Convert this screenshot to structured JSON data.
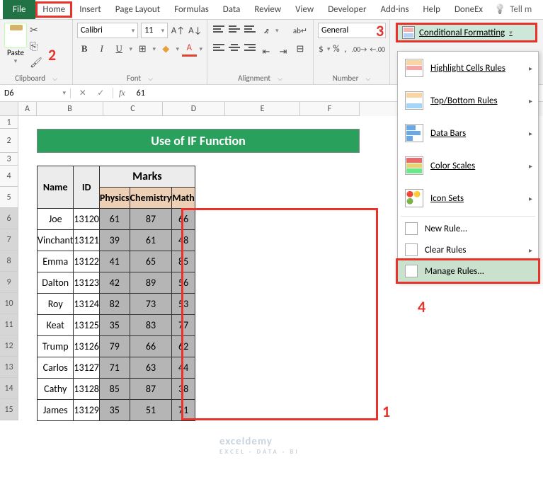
{
  "ribbon_tabs": {
    "file": "File",
    "home": "Home",
    "insert": "Insert",
    "page_layout": "Page Layout",
    "formulas": "Formulas",
    "data": "Data",
    "review": "Review",
    "view": "View",
    "developer": "Developer",
    "add_ins": "Add-ins",
    "help": "Help",
    "donex": "DoneEx",
    "tell_me": "Tell m"
  },
  "ribbon_groups": {
    "clipboard": {
      "label": "Clipboard",
      "paste": "Paste"
    },
    "font": {
      "label": "Font",
      "name": "Calibri",
      "size": "11"
    },
    "alignment": {
      "label": "Alignment"
    },
    "number": {
      "label": "Number",
      "format": "General"
    },
    "styles": {
      "cf_button": "Conditional Formatting"
    }
  },
  "name_box": "D6",
  "formula_value": "61",
  "columns": [
    "A",
    "B",
    "C",
    "D",
    "E",
    "F"
  ],
  "row_numbers": [
    "1",
    "2",
    "3",
    "4",
    "5",
    "6",
    "7",
    "8",
    "9",
    "10",
    "11",
    "12",
    "13",
    "14",
    "15"
  ],
  "title_cell": "Use of IF Function",
  "table": {
    "header_name": "Name",
    "header_id": "ID",
    "header_marks": "Marks",
    "sub_physics": "Physics",
    "sub_chemistry": "Chemistry",
    "sub_math": "Math",
    "rows": [
      {
        "name": "Joe",
        "id": "13120",
        "p": "61",
        "c": "87",
        "m": "66"
      },
      {
        "name": "Vinchant",
        "id": "13121",
        "p": "39",
        "c": "61",
        "m": "48"
      },
      {
        "name": "Emma",
        "id": "13122",
        "p": "41",
        "c": "65",
        "m": "85"
      },
      {
        "name": "Dalton",
        "id": "13123",
        "p": "42",
        "c": "89",
        "m": "56"
      },
      {
        "name": "Roy",
        "id": "13124",
        "p": "82",
        "c": "73",
        "m": "53"
      },
      {
        "name": "Keat",
        "id": "13125",
        "p": "35",
        "c": "83",
        "m": "77"
      },
      {
        "name": "Trump",
        "id": "13126",
        "p": "79",
        "c": "66",
        "m": "62"
      },
      {
        "name": "Carlos",
        "id": "13127",
        "p": "71",
        "c": "63",
        "m": "44"
      },
      {
        "name": "Cathy",
        "id": "13128",
        "p": "85",
        "c": "87",
        "m": "38"
      },
      {
        "name": "James",
        "id": "13129",
        "p": "35",
        "c": "51",
        "m": "71"
      }
    ]
  },
  "cf_dropdown": {
    "highlight": "Highlight Cells Rules",
    "topbottom": "Top/Bottom Rules",
    "databars": "Data Bars",
    "colorscales": "Color Scales",
    "iconsets": "Icon Sets",
    "newrule": "New Rule...",
    "clearrules": "Clear Rules",
    "managerules": "Manage Rules..."
  },
  "annotations": {
    "a1": "1",
    "a2": "2",
    "a3": "3",
    "a4": "4"
  },
  "colors": {
    "annotation": "#e8322a",
    "title_bg": "#29a05b",
    "subheader_bg": "#eccfb4",
    "selected_cells_bg": "#b5b5b5",
    "excel_green": "#217346",
    "cf_button_bg": "#cde8d8"
  },
  "watermark": {
    "main": "exceldemy",
    "sub": "EXCEL · DATA · BI"
  }
}
